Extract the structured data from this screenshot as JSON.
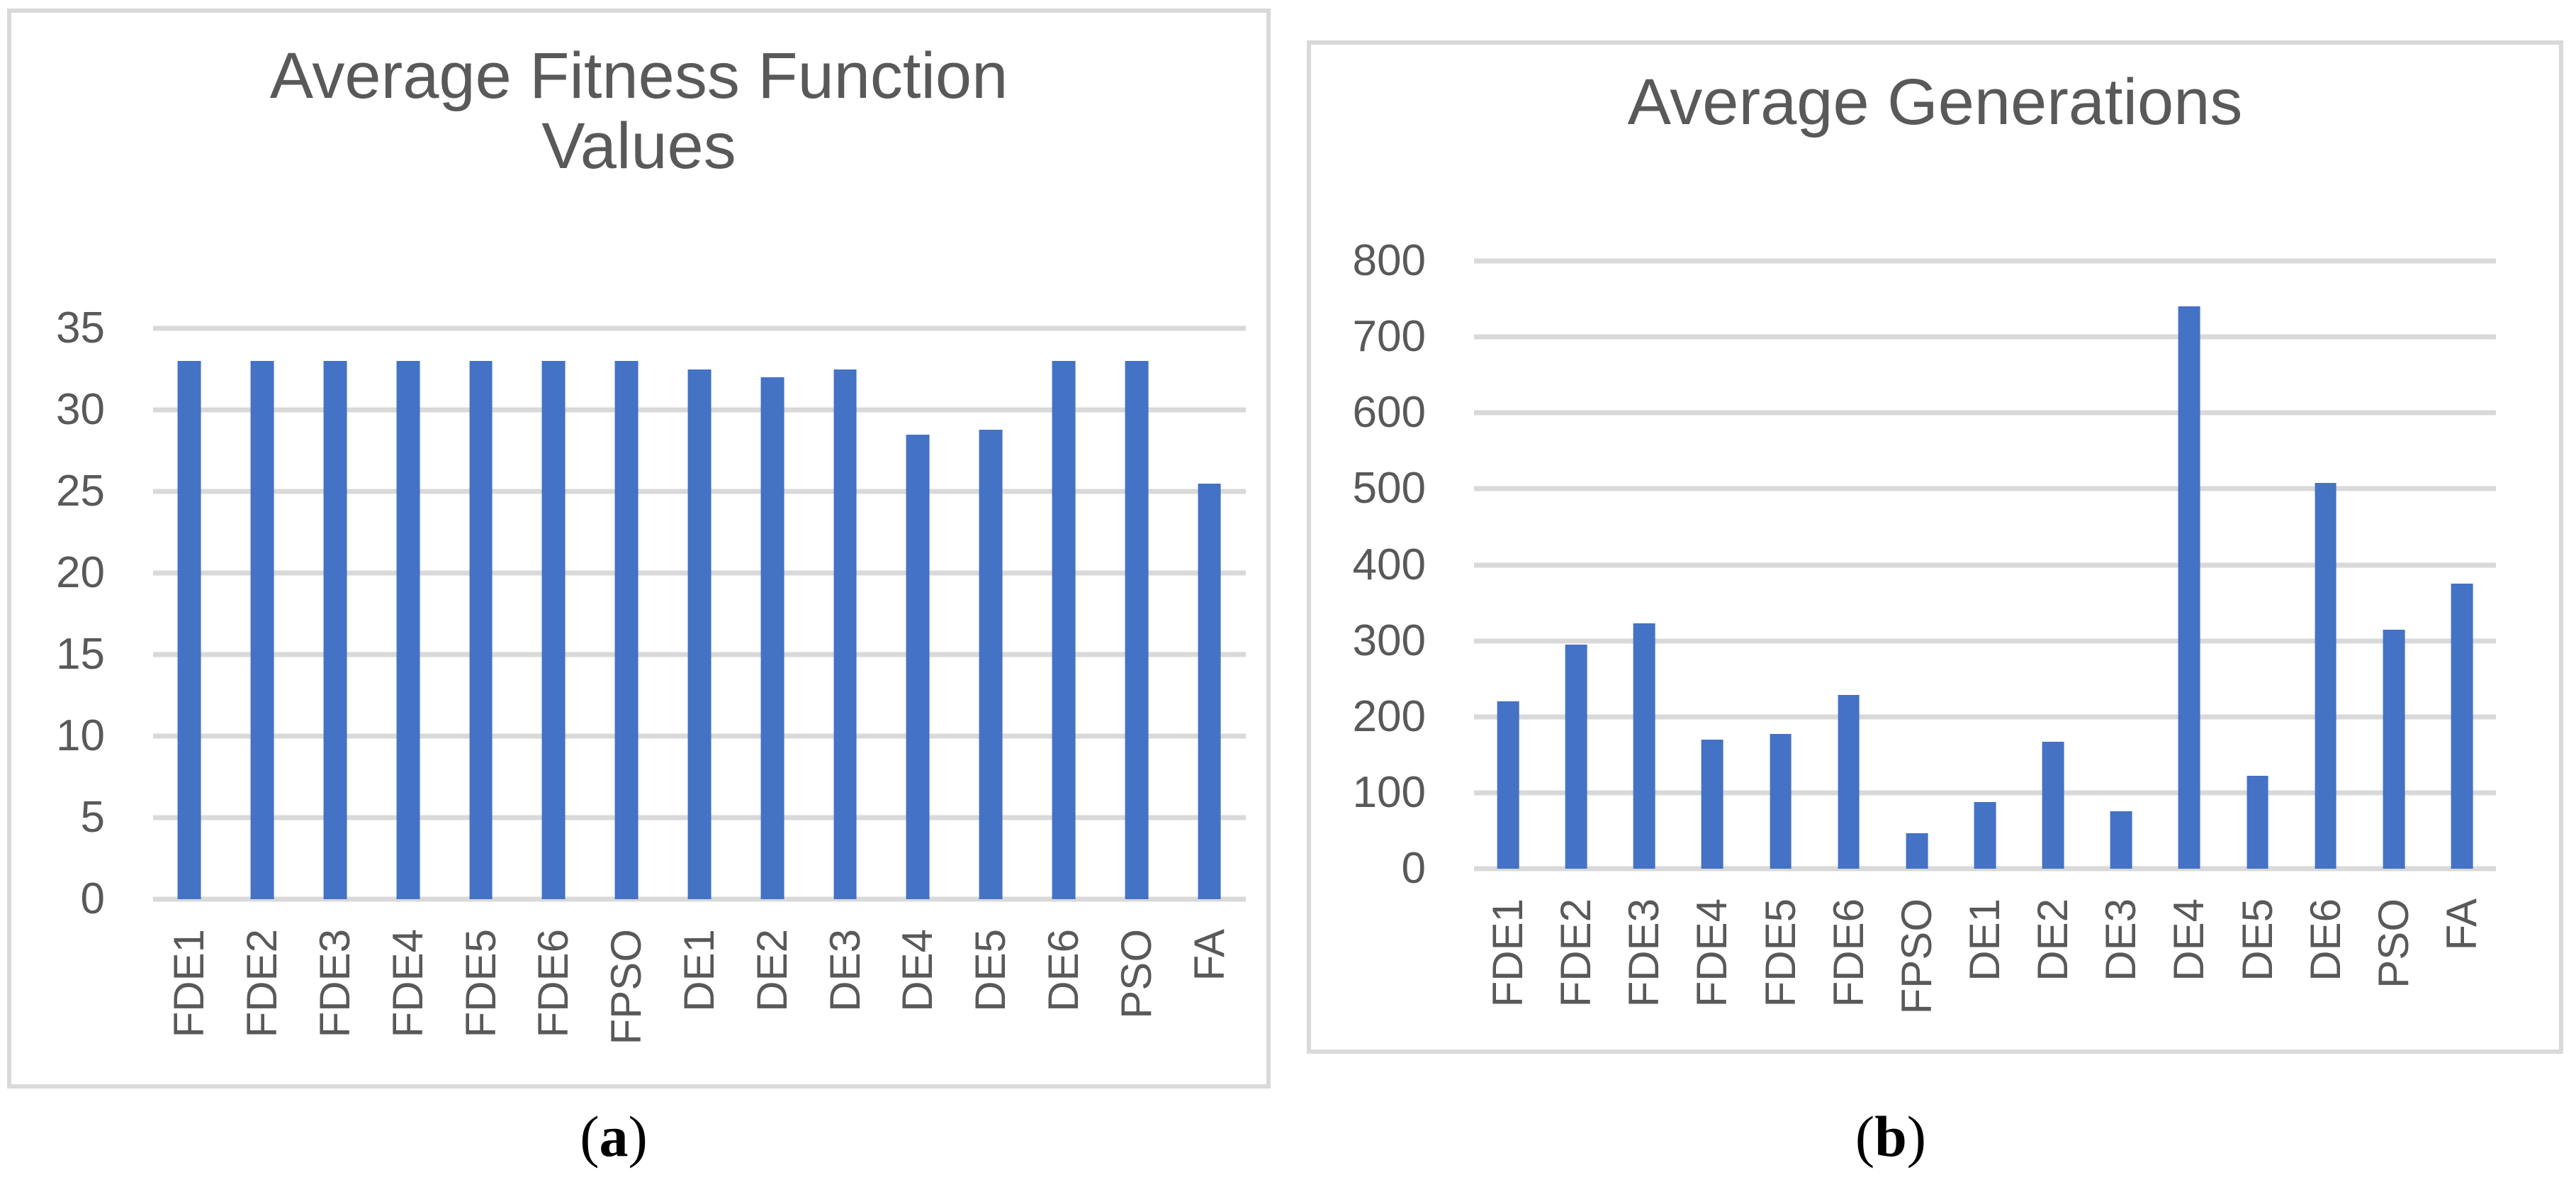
{
  "figure": {
    "background": "#ffffff",
    "panel_border_color": "#D9D9D9",
    "captions": [
      {
        "open": "(",
        "label": "a",
        "close": ")"
      },
      {
        "open": "(",
        "label": "b",
        "close": ")"
      }
    ]
  },
  "chart_data": [
    {
      "type": "bar",
      "title": "Average Fitness Function Values",
      "title_lines": [
        "Average Fitness Function",
        "Values"
      ],
      "categories": [
        "FDE1",
        "FDE2",
        "FDE3",
        "FDE4",
        "FDE5",
        "FDE6",
        "FPSO",
        "DE1",
        "DE2",
        "DE3",
        "DE4",
        "DE5",
        "DE6",
        "PSO",
        "FA"
      ],
      "values": [
        33,
        33,
        33,
        33,
        33,
        33,
        33,
        32.5,
        32,
        32.5,
        28.5,
        28.8,
        33,
        33,
        25.5
      ],
      "xlabel": "",
      "ylabel": "",
      "ylim": [
        0,
        35
      ],
      "y_ticks": [
        0,
        5,
        10,
        15,
        20,
        25,
        30,
        35
      ],
      "grid": "horizontal",
      "legend": "none",
      "bar_color": "#4472C4",
      "grid_color": "#D9D9D9",
      "text_color": "#595959"
    },
    {
      "type": "bar",
      "title": "Average Generations",
      "title_lines": [
        "Average Generations"
      ],
      "categories": [
        "FDE1",
        "FDE2",
        "FDE3",
        "FDE4",
        "FDE5",
        "FDE6",
        "FPSO",
        "DE1",
        "DE2",
        "DE3",
        "DE4",
        "DE5",
        "DE6",
        "PSO",
        "FA"
      ],
      "values": [
        220,
        295,
        323,
        170,
        177,
        229,
        47,
        88,
        167,
        76,
        740,
        122,
        508,
        315,
        375
      ],
      "xlabel": "",
      "ylabel": "",
      "ylim": [
        0,
        800
      ],
      "y_ticks": [
        0,
        100,
        200,
        300,
        400,
        500,
        600,
        700,
        800
      ],
      "grid": "horizontal",
      "legend": "none",
      "bar_color": "#4472C4",
      "grid_color": "#D9D9D9",
      "text_color": "#595959"
    }
  ]
}
